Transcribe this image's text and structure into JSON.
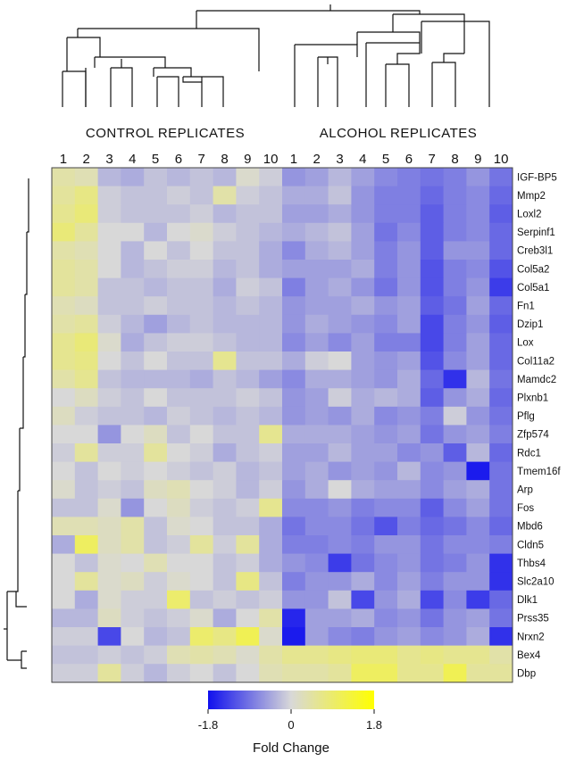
{
  "chart_data": {
    "type": "heatmap",
    "column_groups": [
      {
        "label": "CONTROL REPLICATES",
        "columns": [
          "1",
          "2",
          "3",
          "4",
          "5",
          "6",
          "7",
          "8",
          "9",
          "10"
        ]
      },
      {
        "label": "ALCOHOL REPLICATES",
        "columns": [
          "1",
          "2",
          "3",
          "4",
          "5",
          "6",
          "7",
          "8",
          "9",
          "10"
        ]
      }
    ],
    "rows": [
      "IGF-BP5",
      "Mmp2",
      "Loxl2",
      "Serpinf1",
      "Creb3l1",
      "Col5a2",
      "Col5a1",
      "Fn1",
      "Dzip1",
      "Lox",
      "Col11a2",
      "Mamdc2",
      "Plxnb1",
      "Pflg",
      "Zfp574",
      "Rdc1",
      "Tmem16f",
      "Arp",
      "Fos",
      "Mbd6",
      "Cldn5",
      "Thbs4",
      "Slc2a10",
      "Dlk1",
      "Prss35",
      "Nrxn2",
      "Bex4",
      "Dbp"
    ],
    "values": [
      [
        0.4,
        0.3,
        -0.3,
        -0.4,
        -0.2,
        -0.3,
        -0.2,
        -0.3,
        0.1,
        -0.1,
        -0.6,
        -0.5,
        -0.3,
        -0.5,
        -0.7,
        -0.8,
        -0.9,
        -0.8,
        -0.6,
        -0.9
      ],
      [
        0.5,
        0.7,
        -0.1,
        -0.2,
        -0.2,
        -0.1,
        -0.2,
        0.4,
        -0.1,
        -0.2,
        -0.4,
        -0.4,
        -0.2,
        -0.6,
        -0.8,
        -0.8,
        -1.0,
        -0.8,
        -0.7,
        -1.0
      ],
      [
        0.6,
        0.8,
        -0.1,
        -0.2,
        -0.2,
        -0.2,
        -0.1,
        -0.3,
        -0.2,
        -0.2,
        -0.5,
        -0.5,
        -0.4,
        -0.6,
        -0.8,
        -0.8,
        -1.1,
        -0.8,
        -0.7,
        -1.1
      ],
      [
        0.8,
        0.5,
        0.0,
        0.0,
        -0.3,
        0.0,
        0.1,
        -0.1,
        -0.2,
        -0.3,
        -0.4,
        -0.3,
        -0.2,
        -0.5,
        -0.9,
        -0.7,
        -1.1,
        -0.8,
        -0.7,
        -1.0
      ],
      [
        0.4,
        0.3,
        0.0,
        -0.3,
        0.0,
        -0.2,
        0.0,
        -0.2,
        -0.2,
        -0.4,
        -0.7,
        -0.4,
        -0.3,
        -0.5,
        -0.8,
        -0.6,
        -1.1,
        -0.6,
        -0.6,
        -1.0
      ],
      [
        0.5,
        0.4,
        0.0,
        -0.3,
        -0.2,
        -0.1,
        -0.1,
        -0.3,
        -0.2,
        -0.4,
        -0.5,
        -0.5,
        -0.5,
        -0.4,
        -0.8,
        -0.6,
        -1.2,
        -0.8,
        -0.7,
        -1.2
      ],
      [
        0.5,
        0.4,
        -0.2,
        -0.2,
        -0.3,
        -0.2,
        -0.2,
        -0.4,
        -0.1,
        -0.2,
        -0.8,
        -0.5,
        -0.4,
        -0.6,
        -0.9,
        -0.6,
        -1.2,
        -0.8,
        -0.6,
        -1.4
      ],
      [
        0.3,
        0.2,
        -0.2,
        -0.2,
        -0.1,
        -0.2,
        -0.2,
        -0.3,
        -0.2,
        -0.3,
        -0.6,
        -0.5,
        -0.5,
        -0.4,
        -0.6,
        -0.5,
        -1.1,
        -0.9,
        -0.5,
        -1.0
      ],
      [
        0.4,
        0.5,
        -0.1,
        -0.3,
        -0.5,
        -0.3,
        -0.2,
        -0.3,
        -0.3,
        -0.3,
        -0.6,
        -0.4,
        -0.5,
        -0.6,
        -0.7,
        -0.5,
        -1.3,
        -0.8,
        -0.6,
        -1.1
      ],
      [
        0.6,
        0.8,
        0.1,
        -0.4,
        -0.2,
        -0.1,
        -0.1,
        -0.2,
        -0.3,
        -0.3,
        -0.7,
        -0.5,
        -0.7,
        -0.5,
        -0.8,
        -0.8,
        -1.3,
        -0.8,
        -0.5,
        -1.0
      ],
      [
        0.6,
        0.7,
        0.0,
        -0.2,
        0.0,
        -0.2,
        -0.2,
        0.6,
        -0.2,
        -0.2,
        -0.4,
        -0.1,
        0.0,
        -0.5,
        -0.6,
        -0.5,
        -1.2,
        -0.7,
        -0.5,
        -1.0
      ],
      [
        0.4,
        0.6,
        -0.2,
        -0.3,
        -0.3,
        -0.3,
        -0.4,
        -0.2,
        -0.3,
        -0.5,
        -0.7,
        -0.4,
        -0.4,
        -0.5,
        -0.6,
        -0.4,
        -1.0,
        -1.5,
        -0.3,
        -0.9
      ],
      [
        0.0,
        0.2,
        -0.1,
        -0.2,
        0.0,
        -0.2,
        -0.2,
        -0.2,
        -0.1,
        -0.2,
        -0.6,
        -0.5,
        -0.1,
        -0.4,
        -0.3,
        -0.4,
        -1.1,
        -0.6,
        -0.4,
        -1.0
      ],
      [
        0.2,
        -0.1,
        -0.2,
        -0.2,
        -0.3,
        -0.1,
        -0.2,
        -0.3,
        -0.2,
        -0.3,
        -0.6,
        -0.5,
        -0.6,
        -0.4,
        -0.7,
        -0.6,
        -0.8,
        -0.1,
        -0.6,
        -0.9
      ],
      [
        0.0,
        0.0,
        -0.6,
        0.0,
        0.2,
        -0.2,
        0.0,
        -0.2,
        -0.2,
        0.6,
        -0.4,
        -0.4,
        -0.4,
        -0.5,
        -0.6,
        -0.5,
        -0.9,
        -0.6,
        -0.5,
        -0.8
      ],
      [
        -0.1,
        0.5,
        -0.1,
        -0.1,
        0.5,
        0.0,
        -0.1,
        -0.4,
        -0.2,
        -0.1,
        -0.5,
        -0.5,
        -0.3,
        -0.5,
        -0.5,
        -0.7,
        -0.6,
        -1.1,
        -0.3,
        -1.0
      ],
      [
        0.0,
        -0.2,
        0.0,
        -0.1,
        0.0,
        -0.1,
        -0.2,
        -0.1,
        -0.3,
        -0.2,
        -0.5,
        -0.4,
        -0.6,
        -0.5,
        -0.6,
        -0.3,
        -0.7,
        -0.6,
        -1.7,
        -0.9
      ],
      [
        0.1,
        -0.2,
        -0.1,
        -0.2,
        0.2,
        0.3,
        0.0,
        -0.1,
        -0.3,
        -0.1,
        -0.6,
        -0.4,
        0.0,
        -0.4,
        -0.5,
        -0.5,
        -0.7,
        -0.5,
        -0.4,
        -0.9
      ],
      [
        -0.2,
        -0.2,
        0.1,
        -0.6,
        0.0,
        0.2,
        -0.1,
        -0.2,
        -0.1,
        0.6,
        -0.7,
        -0.7,
        -0.6,
        -0.8,
        -0.7,
        -0.7,
        -1.1,
        -0.7,
        -0.5,
        -0.9
      ],
      [
        0.3,
        0.3,
        0.2,
        0.4,
        -0.2,
        0.1,
        0.0,
        -0.2,
        -0.2,
        -0.4,
        -0.9,
        -0.7,
        -0.7,
        -0.9,
        -1.2,
        -0.8,
        -1.0,
        -0.9,
        -0.7,
        -1.0
      ],
      [
        -0.4,
        1.0,
        0.2,
        0.4,
        -0.2,
        -0.1,
        0.5,
        -0.1,
        0.5,
        -0.4,
        -0.8,
        -0.8,
        -0.7,
        -0.8,
        -0.6,
        -0.6,
        -0.9,
        -0.7,
        -0.7,
        -0.8
      ],
      [
        0.0,
        -0.2,
        0.1,
        0.0,
        0.3,
        0.0,
        0.0,
        -0.2,
        -0.1,
        -0.4,
        -0.6,
        -0.7,
        -1.4,
        -0.9,
        -0.7,
        -0.6,
        -0.9,
        -0.8,
        -0.6,
        -1.5
      ],
      [
        0.0,
        0.5,
        0.1,
        0.2,
        -0.1,
        0.1,
        0.0,
        -0.2,
        0.7,
        -0.2,
        -0.8,
        -0.6,
        -0.6,
        -0.4,
        -0.7,
        -0.5,
        -0.8,
        -0.6,
        -0.6,
        -1.5
      ],
      [
        0.0,
        -0.4,
        0.1,
        -0.1,
        -0.1,
        0.9,
        -0.2,
        -0.1,
        -0.2,
        -0.1,
        -0.6,
        -0.6,
        -0.2,
        -1.3,
        -0.6,
        -0.4,
        -1.3,
        -0.7,
        -1.4,
        -1.0
      ],
      [
        -0.3,
        -0.3,
        0.2,
        -0.1,
        -0.2,
        -0.1,
        0.1,
        -0.4,
        0.0,
        0.4,
        -1.6,
        -0.5,
        -0.5,
        -0.4,
        -0.7,
        -0.6,
        -0.9,
        -0.6,
        -0.5,
        -0.9
      ],
      [
        -0.1,
        -0.1,
        -1.3,
        0.0,
        -0.3,
        -0.2,
        0.9,
        0.7,
        1.1,
        0.1,
        -1.7,
        -0.5,
        -0.7,
        -0.8,
        -0.6,
        -0.5,
        -0.7,
        -0.6,
        -0.4,
        -1.5
      ],
      [
        -0.2,
        -0.2,
        -0.1,
        -0.2,
        -0.1,
        0.3,
        0.4,
        0.3,
        0.1,
        0.4,
        0.6,
        0.6,
        0.7,
        0.8,
        0.8,
        0.6,
        0.7,
        0.6,
        0.6,
        0.4
      ],
      [
        -0.1,
        -0.1,
        0.5,
        -0.1,
        -0.3,
        -0.1,
        0.0,
        -0.2,
        0.0,
        0.3,
        0.4,
        0.4,
        0.5,
        1.0,
        1.0,
        0.6,
        0.6,
        1.1,
        0.5,
        0.5
      ]
    ],
    "color_scale": {
      "min": -1.8,
      "mid": 0,
      "max": 1.8,
      "min_color": "#1010ee",
      "mid_color": "#d8d8d8",
      "max_color": "#ffff00"
    },
    "legend": {
      "tick_labels": [
        "-1.8",
        "0",
        "1.8"
      ],
      "title": "Fold Change"
    }
  }
}
